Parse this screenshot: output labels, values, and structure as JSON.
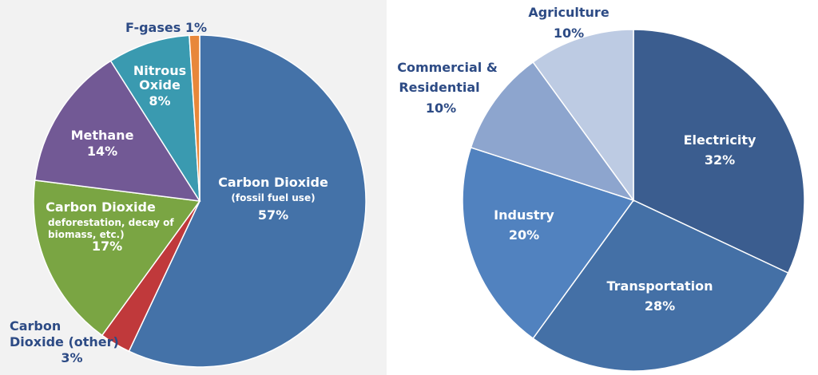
{
  "chart_data": [
    {
      "type": "pie",
      "slices": [
        {
          "label": "Carbon Dioxide",
          "sublabel": "(fossil fuel use)",
          "value_label": "57%",
          "value": 57,
          "color": "#4472a8"
        },
        {
          "label": "Carbon Dioxide (other)",
          "value_label": "3%",
          "value": 3,
          "color": "#c0393b"
        },
        {
          "label": "Carbon Dioxide",
          "sublabel": "(deforestation, decay of biomass, etc.)",
          "value_label": "17%",
          "value": 17,
          "color": "#7aa543"
        },
        {
          "label": "Methane",
          "value_label": "14%",
          "value": 14,
          "color": "#725995"
        },
        {
          "label": "Nitrous Oxide",
          "value_label": "8%",
          "value": 8,
          "color": "#3a9ab0"
        },
        {
          "label": "F-gases 1%",
          "value": 1,
          "color": "#e8873a"
        }
      ]
    },
    {
      "type": "pie",
      "slices": [
        {
          "label": "Electricity",
          "value_label": "32%",
          "value": 32,
          "color": "#3b5d8f"
        },
        {
          "label": "Transportation",
          "value_label": "28%",
          "value": 28,
          "color": "#4470a6"
        },
        {
          "label": "Industry",
          "value_label": "20%",
          "value": 20,
          "color": "#5182bf"
        },
        {
          "label": "Commercial & Residential",
          "value_label": "10%",
          "value": 10,
          "color": "#8da5ce"
        },
        {
          "label": "Agriculture",
          "value_label": "10%",
          "value": 10,
          "color": "#bdcbe3"
        }
      ]
    }
  ]
}
